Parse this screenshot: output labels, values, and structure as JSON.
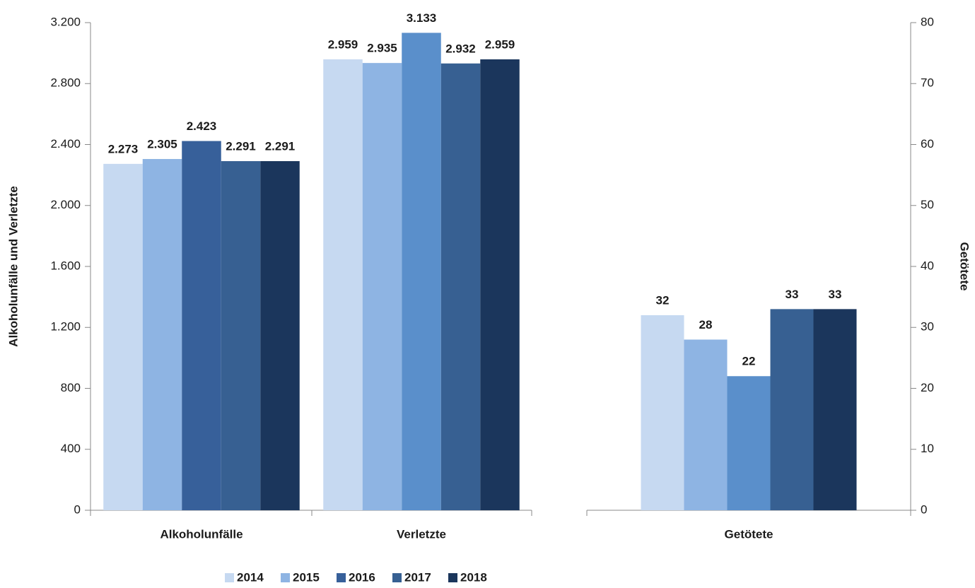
{
  "chart_data": {
    "type": "bar",
    "ylabel": "Alkoholunfälle und Verletzte",
    "y2label": "Getötete",
    "categories": [
      "Alkoholunfälle",
      "Verletzte",
      "Getötete"
    ],
    "category_axis": [
      "y",
      "y",
      "y2"
    ],
    "ylim": [
      0,
      3200
    ],
    "yticks": [
      0,
      {
        "value": 400,
        "label": "400"
      },
      {
        "value": 800,
        "label": "800"
      },
      {
        "value": 1200,
        "label": "1.200"
      },
      {
        "value": 1600,
        "label": "1.600"
      },
      {
        "value": 2000,
        "label": "2.000"
      },
      {
        "value": 2400,
        "label": "2.400"
      },
      {
        "value": 2800,
        "label": "2.800"
      },
      {
        "value": 3200,
        "label": "3.200"
      }
    ],
    "y2lim": [
      0,
      80
    ],
    "y2ticks": [
      0,
      10,
      20,
      30,
      40,
      50,
      60,
      70,
      80
    ],
    "grid": false,
    "legend": "bottom",
    "series": [
      {
        "name": "2014",
        "color": "#c6d9f1",
        "values": [
          2273,
          2959,
          32
        ],
        "value_labels": [
          "2.273",
          "2.959",
          "32"
        ]
      },
      {
        "name": "2015",
        "color": "#8eb4e3",
        "values": [
          2305,
          2935,
          28
        ],
        "value_labels": [
          "2.305",
          "2.935",
          "28"
        ]
      },
      {
        "name": "2016",
        "color": "#37609a",
        "point_colors": [
          "#37609a",
          "#5a8fcb",
          "#5a8fcb"
        ],
        "values": [
          2423,
          3133,
          22
        ],
        "value_labels": [
          "2.423",
          "3.133",
          "22"
        ]
      },
      {
        "name": "2017",
        "color": "#376092",
        "values": [
          2291,
          2932,
          33
        ],
        "value_labels": [
          "2.291",
          "2.932",
          "33"
        ]
      },
      {
        "name": "2018",
        "color": "#1b365c",
        "values": [
          2291,
          2959,
          33
        ],
        "value_labels": [
          "2.291",
          "2.959",
          "33"
        ]
      }
    ]
  }
}
